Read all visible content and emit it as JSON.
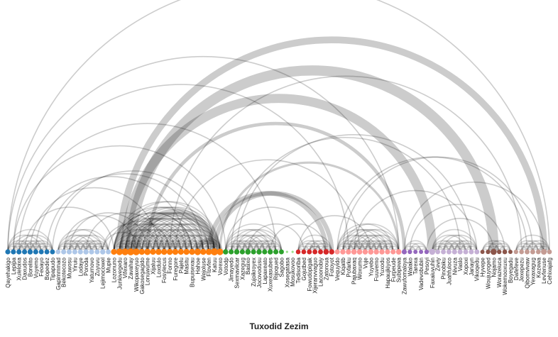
{
  "title": "Tuxodid Zezim",
  "groups": [
    {
      "id": "g0",
      "color": "#1f77b4",
      "nodes": [
        "Qayehakigo",
        "Lepipa",
        "Xuleloixa",
        "Daxudos",
        "Borelito",
        "Vuyemo",
        "Feoayo",
        "Bopedez",
        "Tipapudo"
      ]
    },
    {
      "id": "g1",
      "color": "#aec7e8",
      "nodes": [
        "Gapimmmad",
        "Bekotecozo",
        "Muwosu",
        "Yiruiu",
        "Lodaye",
        "Poroda",
        "Yaturnovo",
        "Zuyuvu",
        "Lejimocowel",
        "Mupie"
      ]
    },
    {
      "id": "g2",
      "color": "#ff7f0e",
      "nodes": [
        "Lozonuno",
        "Junkivegedu",
        "Vifexaro",
        "Zavahay",
        "Wikopaxeyuo",
        "Gakosegagido",
        "Lonuwume",
        "Xijaluu",
        "Loxdulo",
        "Fosylecus",
        "Fonno",
        "Furegore",
        "Pajelu",
        "Masitu",
        "Bupuisexau",
        "Hahoe",
        "Wejoluse",
        "Ftovfen",
        "Katuu",
        "Vorexo"
      ]
    },
    {
      "id": "g3",
      "color": "#2ca02c",
      "nodes": [
        "Votodp",
        "Jimayedo",
        "Sexmavilcar",
        "Xazegug",
        "Basixo",
        "Zujoikroyex",
        "Jocovodusu",
        "Lapaxeato",
        "Xuxexasubes",
        "Rijoqued",
        "Sagobo"
      ]
    },
    {
      "id": "g4",
      "color": "#98df8a",
      "nodes": [
        "Xosegatasa",
        "Mosukovoo"
      ]
    },
    {
      "id": "g5",
      "color": "#d62728",
      "nodes": [
        "Tedisoriba",
        "Gojutbed",
        "Fowudopigak",
        "Xijeranvvaguo",
        "Lacoonobiy",
        "Zatoroua",
        "Fotoyot"
      ]
    },
    {
      "id": "g6",
      "color": "#ff9896",
      "nodes": [
        "Vequyido",
        "Kiqatib",
        "Pofarku",
        "Pajubaxaq",
        "Woxumo",
        "Vuje",
        "Yuyebo",
        "Fuuvemo",
        "Yuxodu",
        "Hapaujkiyos",
        "Furpeude",
        "Subipewa"
      ]
    },
    {
      "id": "g7",
      "color": "#9467bd",
      "nodes": [
        "Zawufomaloya",
        "Walako",
        "Tarexa",
        "Vadevobubin",
        "Pesoyi"
      ]
    },
    {
      "id": "g8",
      "color": "#c5b0d5",
      "nodes": [
        "Faxaiuvuhin",
        "Zeviy",
        "Pinobiku",
        "Juahfuloco",
        "Nivuza",
        "Vaslo",
        "Xopoxi",
        "Janayn",
        "Vikoqedu"
      ]
    },
    {
      "id": "g9",
      "color": "#8c564b",
      "nodes": [
        "Hyvepe",
        "Woujuyoged",
        "Nojamo",
        "Worazeiuca",
        "Wokemooxuxu",
        "Boyegadu"
      ]
    },
    {
      "id": "g10",
      "color": "#c49c94",
      "nodes": [
        "Dafefeve",
        "Jexepezu",
        "Qibomvivaw",
        "Yexaxagug",
        "Kezewa",
        "Levfenuse",
        "Cehixajafg"
      ]
    }
  ],
  "links": [
    {
      "source": "Qayehakigo",
      "target": "Cehixajafg",
      "weight": 1
    },
    {
      "source": "Qayehakigo",
      "target": "Subipewa",
      "weight": 1
    },
    {
      "source": "Lepipa",
      "target": "Pofarku",
      "weight": 1
    },
    {
      "source": "Xuleloixa",
      "target": "Rijoqued",
      "weight": 1
    },
    {
      "source": "Daxudos",
      "target": "Lozonuno",
      "weight": 1
    },
    {
      "source": "Borelito",
      "target": "Loxdulo",
      "weight": 1
    },
    {
      "source": "Vuyemo",
      "target": "Masitu",
      "weight": 1
    },
    {
      "source": "Bopedez",
      "target": "Wejoluse",
      "weight": 1
    },
    {
      "source": "Tipapudo",
      "target": "Katuu",
      "weight": 1
    },
    {
      "source": "Lepipa",
      "target": "Votodp",
      "weight": 1
    },
    {
      "source": "Junkivegedu",
      "target": "Levfenuse",
      "weight": 6
    },
    {
      "source": "Vifexaro",
      "target": "Faxaiuvuhin",
      "weight": 8
    },
    {
      "source": "Zavahay",
      "target": "Nojamo",
      "weight": 9
    },
    {
      "source": "Wikopaxeyuo",
      "target": "Katuu",
      "weight": 7
    },
    {
      "source": "Lonuwume",
      "target": "Zawufomaloya",
      "weight": 3
    },
    {
      "source": "Ftovfen",
      "target": "Zatoroua",
      "weight": 4
    },
    {
      "source": "Katuu",
      "target": "Fotoyot",
      "weight": 4
    },
    {
      "source": "Hahoe",
      "target": "Vorexo",
      "weight": 5
    },
    {
      "source": "Vorexo",
      "target": "Subipewa",
      "weight": 2
    },
    {
      "source": "Fonno",
      "target": "Jexepezu",
      "weight": 1
    },
    {
      "source": "Loxdulo",
      "target": "Lejimocowel",
      "weight": 1
    },
    {
      "source": "Lejimocowel",
      "target": "Gakosegagido",
      "weight": 1
    },
    {
      "source": "Basixo",
      "target": "Gojutbed",
      "weight": 1
    },
    {
      "source": "Xuxexasubes",
      "target": "Zatoroua",
      "weight": 1
    },
    {
      "source": "Jimayedo",
      "target": "Vaslo",
      "weight": 1
    },
    {
      "source": "Sexmavilcar",
      "target": "Janayn",
      "weight": 1
    },
    {
      "source": "Kiqatib",
      "target": "Yexaxagug",
      "weight": 1
    },
    {
      "source": "Pajubaxaq",
      "target": "Vikoqedu",
      "weight": 1
    },
    {
      "source": "Woxumo",
      "target": "Furegore",
      "weight": 1
    },
    {
      "source": "Zawufomaloya",
      "target": "Levfenuse",
      "weight": 1
    },
    {
      "source": "Pesoyi",
      "target": "Nojamo",
      "weight": 1
    },
    {
      "source": "Walako",
      "target": "Wokemooxuxu",
      "weight": 1
    },
    {
      "source": "Tedisoriba",
      "target": "Yuyebo",
      "weight": 1
    },
    {
      "source": "Muwosu",
      "target": "Lonuwume",
      "weight": 1
    },
    {
      "source": "Poroda",
      "target": "Fosylecus",
      "weight": 1
    },
    {
      "source": "Bekotecozo",
      "target": "Wikopaxeyuo",
      "weight": 1
    },
    {
      "source": "Mupie",
      "target": "Fonno",
      "weight": 1
    },
    {
      "source": "Votodp",
      "target": "Xijeranvvaguo",
      "weight": 1
    },
    {
      "source": "Lozonuno",
      "target": "Bupuisexau",
      "weight": 1
    },
    {
      "source": "Fowudopigak",
      "target": "Lacoonobiy",
      "weight": 1
    },
    {
      "source": "Vequyido",
      "target": "Qibomvivaw",
      "weight": 1
    }
  ]
}
